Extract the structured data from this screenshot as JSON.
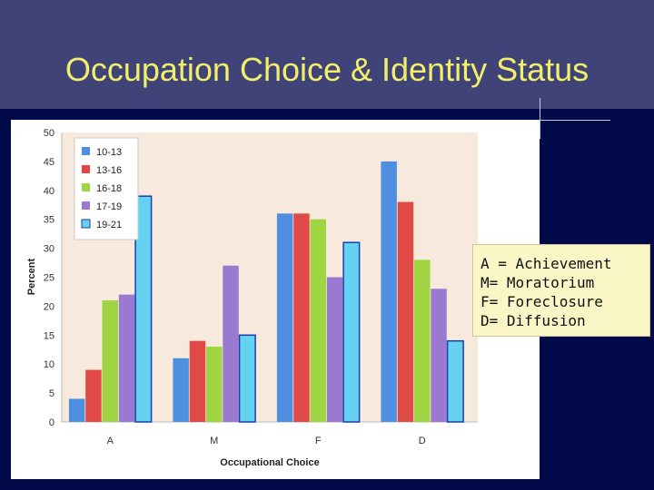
{
  "slide": {
    "title": "Occupation Choice & Identity Status",
    "key_lines": [
      "A = Achievement",
      "M= Moratorium",
      "F= Foreclosure",
      "D= Diffusion"
    ]
  },
  "colors": {
    "background": "#020a4a",
    "title_band": "#3f4378",
    "title_text": "#f2ef6a",
    "plot_area": "#f7eadc",
    "key_box": "#fbf6c6"
  },
  "chart_data": {
    "type": "bar",
    "xlabel": "Occupational Choice",
    "ylabel": "Percent",
    "ylim": [
      0,
      50
    ],
    "yticks": [
      0,
      5,
      10,
      15,
      20,
      25,
      30,
      35,
      40,
      45,
      50
    ],
    "categories": [
      "A",
      "M",
      "F",
      "D"
    ],
    "legend_position": "top-left",
    "grid": false,
    "series": [
      {
        "name": "10-13",
        "color": "#4f8fe0",
        "values": [
          4,
          11,
          36,
          45
        ]
      },
      {
        "name": "13-16",
        "color": "#e04a46",
        "values": [
          9,
          14,
          36,
          38
        ]
      },
      {
        "name": "16-18",
        "color": "#9fd443",
        "values": [
          21,
          13,
          35,
          28
        ]
      },
      {
        "name": "17-19",
        "color": "#9a79d0",
        "values": [
          22,
          27,
          25,
          23
        ]
      },
      {
        "name": "19-21",
        "color": "#66d2f2",
        "values": [
          39,
          15,
          31,
          14
        ]
      }
    ]
  }
}
